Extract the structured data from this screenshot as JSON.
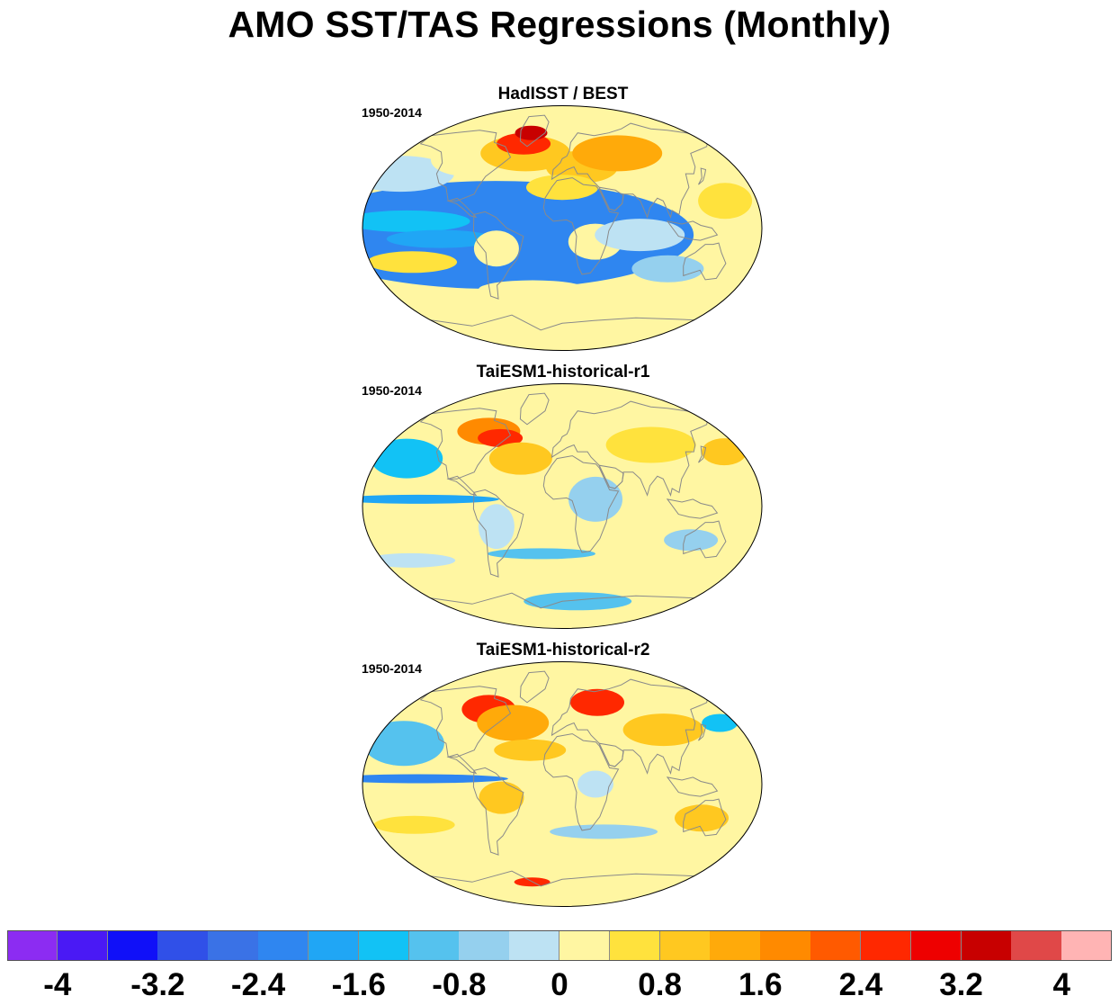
{
  "title": "AMO SST/TAS Regressions (Monthly)",
  "panels": [
    {
      "title": "HadISST / BEST",
      "period": "1950-2014",
      "variant": 0
    },
    {
      "title": "TaiESM1-historical-r1",
      "period": "1950-2014",
      "variant": 1
    },
    {
      "title": "TaiESM1-historical-r2",
      "period": "1950-2014",
      "variant": 2
    }
  ],
  "colorbar": {
    "colors": [
      "#8c2cf2",
      "#4a19f5",
      "#1010f8",
      "#3050e8",
      "#3a72e6",
      "#2f86f0",
      "#20a6f5",
      "#12c2f5",
      "#55c2ee",
      "#95d0ee",
      "#bde2f3",
      "#fff6a2",
      "#ffe23d",
      "#ffc820",
      "#ffaa0a",
      "#ff8a00",
      "#ff5a00",
      "#ff2800",
      "#ee0000",
      "#c80000",
      "#e04848",
      "#ffb4b4"
    ],
    "labels": [
      "-4",
      "-3.2",
      "-2.4",
      "-1.6",
      "-0.8",
      "0",
      "0.8",
      "1.6",
      "2.4",
      "3.2",
      "4"
    ],
    "label_values": [
      -4,
      -3.2,
      -2.4,
      -1.6,
      -0.8,
      0,
      0.8,
      1.6,
      2.4,
      3.2,
      4
    ],
    "min": -4.4,
    "max": 4.4
  }
}
